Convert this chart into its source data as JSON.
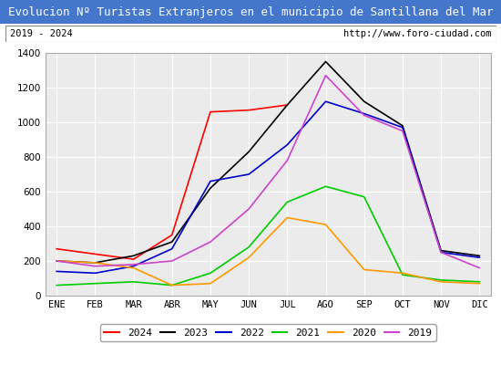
{
  "title": "Evolucion Nº Turistas Extranjeros en el municipio de Santillana del Mar",
  "subtitle_left": "2019 - 2024",
  "subtitle_right": "http://www.foro-ciudad.com",
  "months": [
    "ENE",
    "FEB",
    "MAR",
    "ABR",
    "MAY",
    "JUN",
    "JUL",
    "AGO",
    "SEP",
    "OCT",
    "NOV",
    "DIC"
  ],
  "series": {
    "2024": [
      270,
      240,
      210,
      350,
      1060,
      1070,
      1100,
      null,
      null,
      null,
      null,
      null
    ],
    "2023": [
      200,
      190,
      230,
      310,
      620,
      830,
      1100,
      1350,
      1120,
      980,
      260,
      230
    ],
    "2022": [
      140,
      130,
      170,
      270,
      660,
      700,
      870,
      1120,
      1050,
      970,
      250,
      220
    ],
    "2021": [
      60,
      70,
      80,
      60,
      130,
      280,
      540,
      630,
      570,
      120,
      90,
      80
    ],
    "2020": [
      200,
      190,
      160,
      60,
      70,
      220,
      450,
      410,
      150,
      130,
      80,
      70
    ],
    "2019": [
      200,
      170,
      180,
      200,
      310,
      500,
      780,
      1270,
      1040,
      950,
      250,
      160
    ]
  },
  "colors": {
    "2024": "#ff0000",
    "2023": "#000000",
    "2022": "#0000cc",
    "2021": "#00cc00",
    "2020": "#ff9900",
    "2019": "#cc44cc"
  },
  "ylim": [
    0,
    1400
  ],
  "yticks": [
    0,
    200,
    400,
    600,
    800,
    1000,
    1200,
    1400
  ],
  "title_bg_color": "#4477cc",
  "title_text_color": "#ffffff",
  "plot_bg_color": "#ebebeb",
  "grid_color": "#ffffff",
  "border_color": "#aaaaaa"
}
